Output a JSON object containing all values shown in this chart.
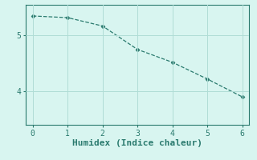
{
  "x": [
    0,
    1,
    2,
    3,
    4,
    5,
    6
  ],
  "y": [
    5.35,
    5.32,
    5.17,
    4.75,
    4.52,
    4.22,
    3.9
  ],
  "line_color": "#2a7a6e",
  "marker": "D",
  "marker_size": 2.5,
  "background_color": "#d8f5f0",
  "grid_color": "#b0ddd6",
  "xlabel": "Humidex (Indice chaleur)",
  "xlabel_fontsize": 8,
  "xticks": [
    0,
    1,
    2,
    3,
    4,
    5,
    6
  ],
  "yticks": [
    4,
    5
  ],
  "ylim": [
    3.4,
    5.55
  ],
  "xlim": [
    -0.2,
    6.2
  ],
  "tick_color": "#2a7a6e",
  "spine_color": "#2a7a6e",
  "tick_labelsize": 7
}
